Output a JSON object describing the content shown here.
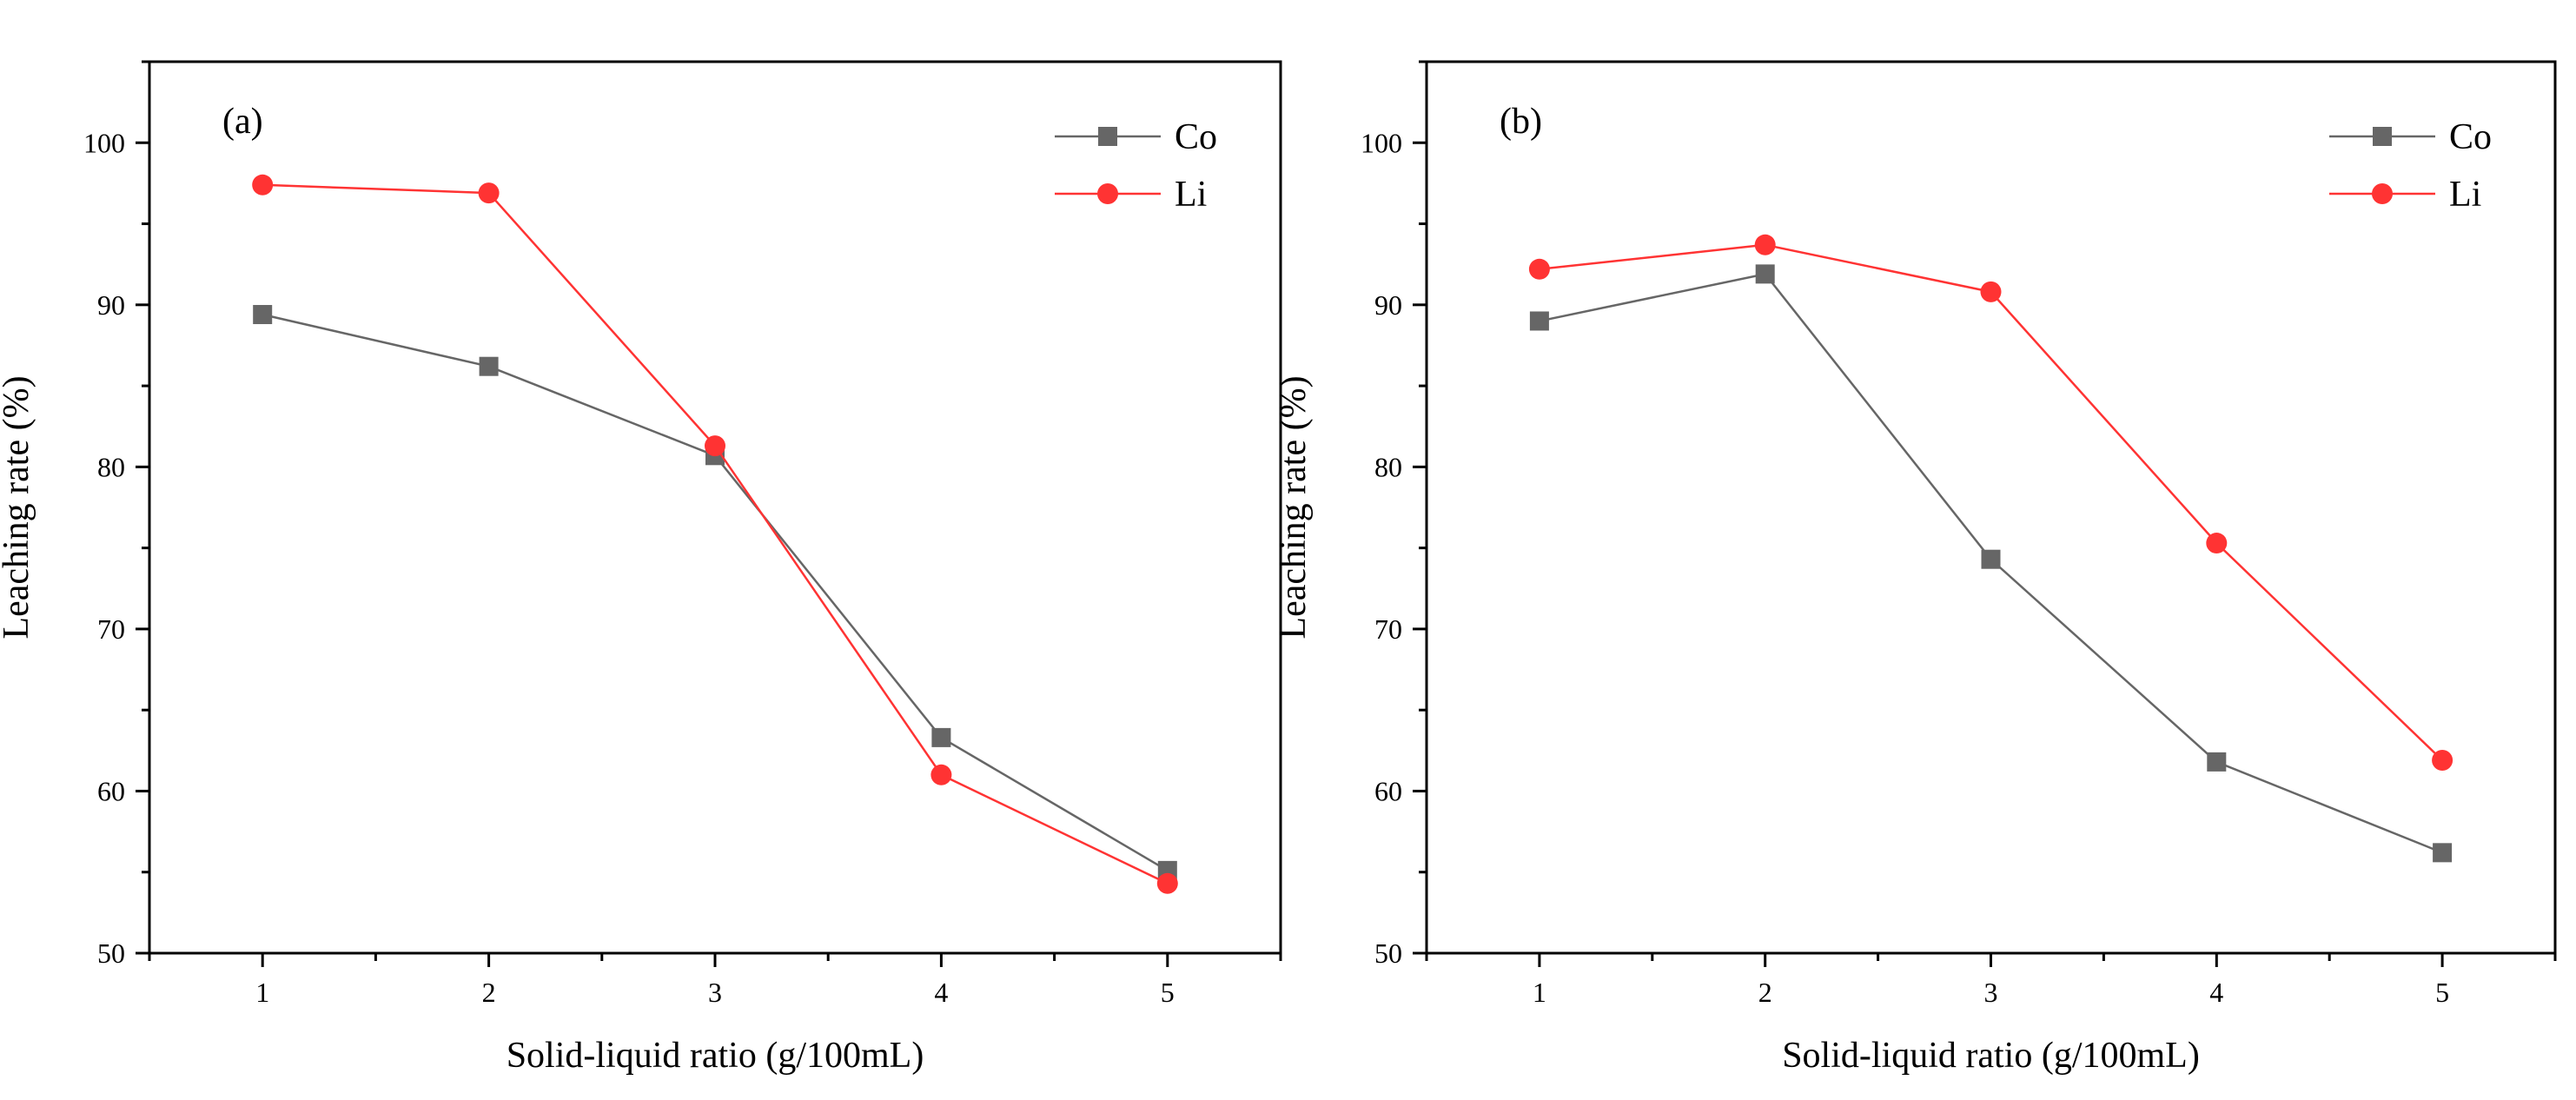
{
  "chart_data": [
    {
      "type": "line",
      "panel_label": "(a)",
      "xlabel": "Solid-liquid ratio (g/100mL)",
      "ylabel": "Leaching rate (%)",
      "x": [
        1,
        2,
        3,
        4,
        5
      ],
      "xlim": [
        0.5,
        5.5
      ],
      "ylim": [
        50,
        105
      ],
      "xticks": [
        1,
        2,
        3,
        4,
        5
      ],
      "yticks": [
        50,
        60,
        70,
        80,
        90,
        100
      ],
      "legend_position": "top-right",
      "series": [
        {
          "name": "Co",
          "color": "#666666",
          "marker": "square",
          "values": [
            89.4,
            86.2,
            80.7,
            63.3,
            55.1
          ]
        },
        {
          "name": "Li",
          "color": "#ff3333",
          "marker": "circle",
          "values": [
            97.4,
            96.9,
            81.3,
            61.0,
            54.3
          ]
        }
      ]
    },
    {
      "type": "line",
      "panel_label": "(b)",
      "xlabel": "Solid-liquid ratio (g/100mL)",
      "ylabel": "Leaching rate (%)",
      "x": [
        1,
        2,
        3,
        4,
        5
      ],
      "xlim": [
        0.5,
        5.5
      ],
      "ylim": [
        50,
        105
      ],
      "xticks": [
        1,
        2,
        3,
        4,
        5
      ],
      "yticks": [
        50,
        60,
        70,
        80,
        90,
        100
      ],
      "legend_position": "top-right",
      "series": [
        {
          "name": "Co",
          "color": "#666666",
          "marker": "square",
          "values": [
            89.0,
            91.9,
            74.3,
            61.8,
            56.2
          ]
        },
        {
          "name": "Li",
          "color": "#ff3333",
          "marker": "circle",
          "values": [
            92.2,
            93.7,
            90.8,
            75.3,
            61.9
          ]
        }
      ]
    }
  ]
}
